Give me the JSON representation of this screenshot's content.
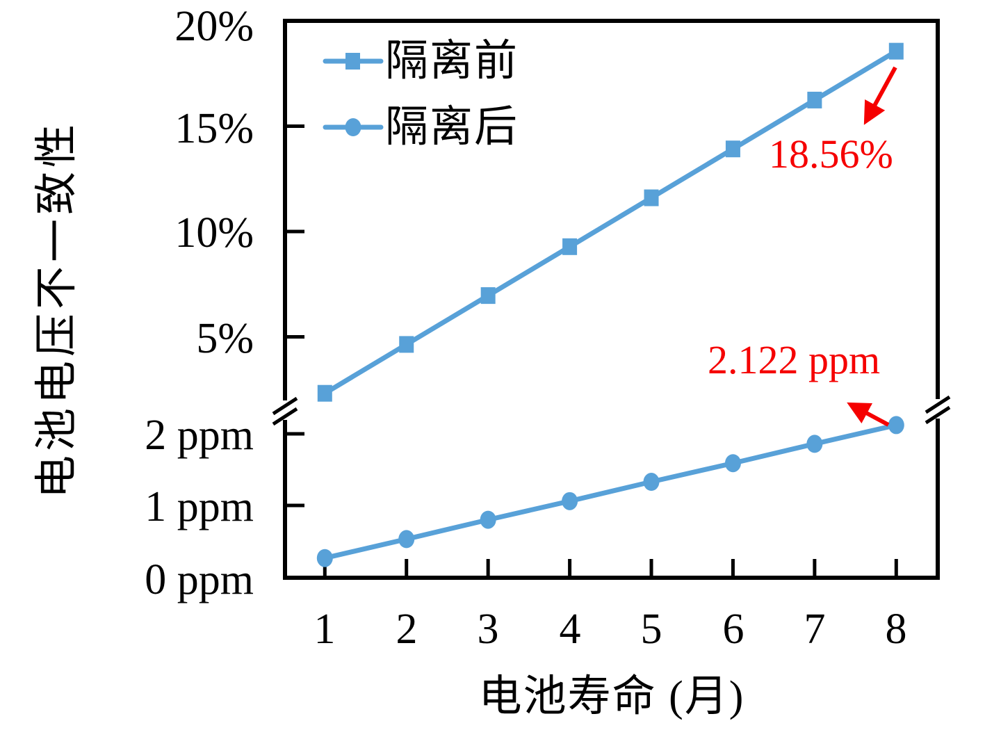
{
  "colors": {
    "series_blue": "#58a1d8",
    "annotation_red": "#f50000",
    "axis_black": "#000000",
    "background": "#ffffff"
  },
  "chart_data": {
    "type": "line",
    "title": "",
    "xlabel": "电池寿命 (月)",
    "ylabel": "电池电压不一致性",
    "x": [
      1,
      2,
      3,
      4,
      5,
      6,
      7,
      8
    ],
    "x_tick_labels": [
      "1",
      "2",
      "3",
      "4",
      "5",
      "6",
      "7",
      "8"
    ],
    "broken_y_axis": {
      "upper_unit": "%",
      "upper_ticks": [
        5,
        10,
        15,
        20
      ],
      "upper_tick_labels": [
        "5%",
        "10%",
        "15%",
        "20%"
      ],
      "lower_unit": "ppm",
      "lower_ticks": [
        0,
        1,
        2
      ],
      "lower_tick_labels": [
        "0 ppm",
        "1 ppm",
        "2 ppm"
      ],
      "break_between": "axis break between 2 ppm region and 5% region"
    },
    "series": [
      {
        "name": "隔离前",
        "marker": "square",
        "axis": "upper",
        "unit": "%",
        "values": [
          2.32,
          4.64,
          6.96,
          9.28,
          11.6,
          13.92,
          16.24,
          18.56
        ]
      },
      {
        "name": "隔离后",
        "marker": "circle",
        "axis": "lower",
        "unit": "ppm",
        "values": [
          0.265,
          0.53,
          0.8,
          1.06,
          1.33,
          1.59,
          1.86,
          2.122
        ]
      }
    ],
    "annotations": [
      {
        "text": "18.56%",
        "series": "隔离前",
        "x": 8,
        "y": 18.56
      },
      {
        "text": "2.122 ppm",
        "series": "隔离后",
        "x": 8,
        "y": 2.122
      }
    ],
    "legend_position": "top-left-inside",
    "grid": false
  }
}
